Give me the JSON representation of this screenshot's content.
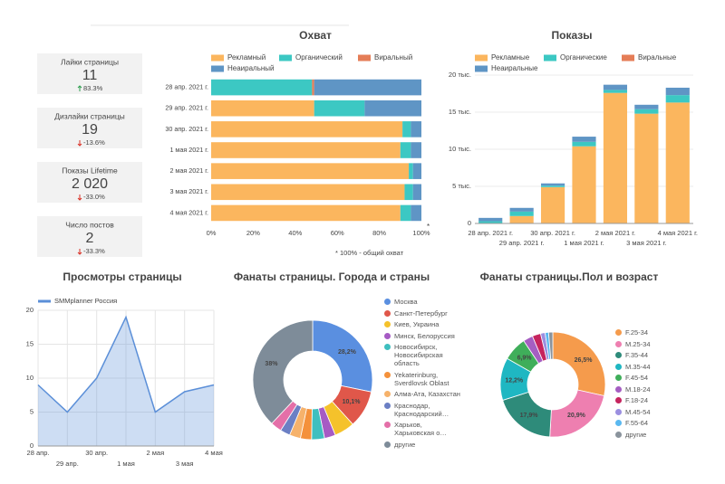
{
  "kpis": [
    {
      "title": "Лайки страницы",
      "value": "11",
      "delta": "83.3%",
      "trend": "up"
    },
    {
      "title": "Дизлайки страницы",
      "value": "19",
      "delta": "-13.6%",
      "trend": "down"
    },
    {
      "title": "Показы Lifetime",
      "value": "2 020",
      "delta": "-33.0%",
      "trend": "down"
    },
    {
      "title": "Число постов",
      "value": "2",
      "delta": "-33.3%",
      "trend": "down"
    }
  ],
  "chart_data": [
    {
      "type": "bar",
      "orientation": "horizontal",
      "stacked": true,
      "title": "Охват",
      "categories": [
        "28 апр. 2021 г.",
        "29 апр. 2021 г.",
        "30 апр. 2021 г.",
        "1 мая 2021 г.",
        "2 мая 2021 г.",
        "3 мая 2021 г.",
        "4 мая 2021 г."
      ],
      "series": [
        {
          "name": "Рекламный",
          "color": "#fbb65e",
          "values": [
            0,
            49,
            91,
            90,
            94,
            92,
            90
          ]
        },
        {
          "name": "Органический",
          "color": "#3cc8c3",
          "values": [
            48,
            24,
            4,
            5,
            2,
            4,
            5
          ]
        },
        {
          "name": "Виральный",
          "color": "#e57d57",
          "values": [
            1,
            0,
            0,
            0,
            0,
            0,
            0
          ]
        },
        {
          "name": "Неаиральный",
          "color": "#5f95c5",
          "values": [
            51,
            27,
            5,
            5,
            4,
            4,
            5
          ]
        }
      ],
      "xlim": [
        0,
        100
      ],
      "xticks": [
        {
          "value": 0,
          "label": "0%"
        },
        {
          "value": 20,
          "label": "20%"
        },
        {
          "value": 40,
          "label": "40%"
        },
        {
          "value": 60,
          "label": "60%"
        },
        {
          "value": 80,
          "label": "80%"
        },
        {
          "value": 100,
          "label": "100%"
        }
      ],
      "grid": false,
      "footnote_marker": "*",
      "footnote": "*   100% - общий охват"
    },
    {
      "type": "bar",
      "orientation": "vertical",
      "stacked": true,
      "title": "Показы",
      "categories": [
        "28 апр. 2021 г.",
        "29 апр. 2021 г.",
        "30 апр. 2021 г.",
        "1 мая 2021 г.",
        "2 мая 2021 г.",
        "3 мая 2021 г.",
        "4 мая 2021 г."
      ],
      "series": [
        {
          "name": "Рекламные",
          "color": "#fbb65e",
          "values": [
            0,
            1000,
            4900,
            10400,
            17600,
            14800,
            16300
          ]
        },
        {
          "name": "Органические",
          "color": "#3cc8c3",
          "values": [
            300,
            600,
            200,
            600,
            400,
            600,
            1000
          ]
        },
        {
          "name": "Виральные",
          "color": "#e57d57",
          "values": [
            0,
            0,
            0,
            0,
            0,
            0,
            0
          ]
        },
        {
          "name": "Неаиральные",
          "color": "#5f95c5",
          "values": [
            450,
            500,
            300,
            700,
            700,
            600,
            1000
          ]
        }
      ],
      "ylim": [
        0,
        20000
      ],
      "yticks": [
        0,
        {
          "value": 5000,
          "label": "5 тыс."
        },
        {
          "value": 10000,
          "label": "10 тыс."
        },
        {
          "value": 15000,
          "label": "15 тыс."
        },
        {
          "value": 20000,
          "label": "20 тыс."
        }
      ],
      "grid": true
    },
    {
      "type": "area",
      "title": "Просмотры страницы",
      "categories": [
        "28 апр.",
        "29 апр.",
        "30 апр.",
        "1 мая",
        "2 мая",
        "3 мая",
        "4 мая"
      ],
      "series": [
        {
          "name": "SMMplanner Россия",
          "color": "#5b8fd8",
          "values": [
            9,
            5,
            10,
            19,
            5,
            8,
            9
          ]
        }
      ],
      "ylim": [
        0,
        20
      ],
      "yticks": [
        0,
        5,
        10,
        15,
        20
      ],
      "grid": true
    },
    {
      "type": "pie",
      "donut": true,
      "title": "Фанаты страницы. Города и страны",
      "categories": [
        "Москва",
        "Санкт-Петербург",
        "Киев, Украина",
        "Минск, Белоруссия",
        "Новосибирск, Новосибирская область",
        "Yekaterinburg, Sverdlovsk Oblast",
        "Алма-Ата, Казахстан",
        "Краснодар, Краснодарский…",
        "Харьков, Харьковская о…",
        "другие"
      ],
      "colors": [
        "#5a8fe0",
        "#e0574a",
        "#f5c22b",
        "#a65bc4",
        "#3fbfbf",
        "#f4913b",
        "#f6b26b",
        "#6b7fc4",
        "#e46fa8",
        "#7e8c99"
      ],
      "values": [
        28.2,
        10.1,
        5.5,
        3,
        3.5,
        3,
        3,
        2.7,
        3,
        38
      ],
      "value_labels": [
        "28,2%",
        "10,1%",
        null,
        null,
        null,
        null,
        null,
        null,
        null,
        "38%"
      ]
    },
    {
      "type": "pie",
      "donut": true,
      "title": "Фанаты страницы.Пол и возраст",
      "categories": [
        "F.25-34",
        "M.25-34",
        "F.35-44",
        "M.35-44",
        "F.45-54",
        "M.18-24",
        "F.18-24",
        "M.45-54",
        "F.55-64",
        "другие"
      ],
      "colors": [
        "#f59b4c",
        "#ee7fb0",
        "#2e8b7a",
        "#1fb7c2",
        "#3fae5a",
        "#a55ec2",
        "#c6245e",
        "#9b8fe0",
        "#5ab8f0",
        "#8a939c"
      ],
      "values": [
        26.5,
        20.9,
        17.9,
        12.2,
        6.9,
        2.8,
        2.4,
        1.3,
        1.0,
        1.2
      ],
      "value_labels": [
        "26,5%",
        "20,9%",
        "17,9%",
        "12,2%",
        "6,9%",
        null,
        null,
        null,
        null,
        null
      ]
    }
  ]
}
